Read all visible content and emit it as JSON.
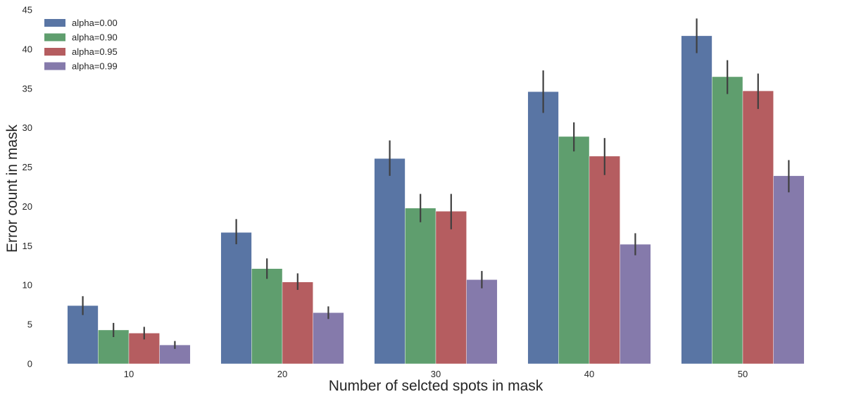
{
  "chart_data": {
    "type": "bar",
    "title": "",
    "xlabel": "Number of selcted spots in mask",
    "ylabel": "Error count in mask",
    "ylim": [
      0,
      45
    ],
    "yticks": [
      0,
      5,
      10,
      15,
      20,
      25,
      30,
      35,
      40,
      45
    ],
    "categories": [
      "10",
      "20",
      "30",
      "40",
      "50"
    ],
    "legend_position": "top-left",
    "grid": false,
    "series": [
      {
        "name": "alpha=0.00",
        "color": "#5975a4",
        "values": [
          7.4,
          16.7,
          26.1,
          34.6,
          41.7
        ],
        "err_low": [
          6.2,
          15.2,
          23.9,
          31.9,
          39.5
        ],
        "err_high": [
          8.6,
          18.4,
          28.4,
          37.3,
          43.9
        ]
      },
      {
        "name": "alpha=0.90",
        "color": "#5f9e6e",
        "values": [
          4.3,
          12.1,
          19.8,
          28.9,
          36.5
        ],
        "err_low": [
          3.4,
          10.8,
          18.0,
          27.0,
          34.3
        ],
        "err_high": [
          5.2,
          13.4,
          21.6,
          30.7,
          38.6
        ]
      },
      {
        "name": "alpha=0.95",
        "color": "#b55d60",
        "values": [
          3.9,
          10.4,
          19.4,
          26.4,
          34.7
        ],
        "err_low": [
          3.1,
          9.4,
          17.1,
          24.0,
          32.4
        ],
        "err_high": [
          4.7,
          11.5,
          21.6,
          28.7,
          36.9
        ]
      },
      {
        "name": "alpha=0.99",
        "color": "#857aab",
        "values": [
          2.4,
          6.5,
          10.7,
          15.2,
          23.9
        ],
        "err_low": [
          1.9,
          5.7,
          9.6,
          13.8,
          21.8
        ],
        "err_high": [
          2.9,
          7.3,
          11.8,
          16.6,
          25.9
        ]
      }
    ]
  }
}
